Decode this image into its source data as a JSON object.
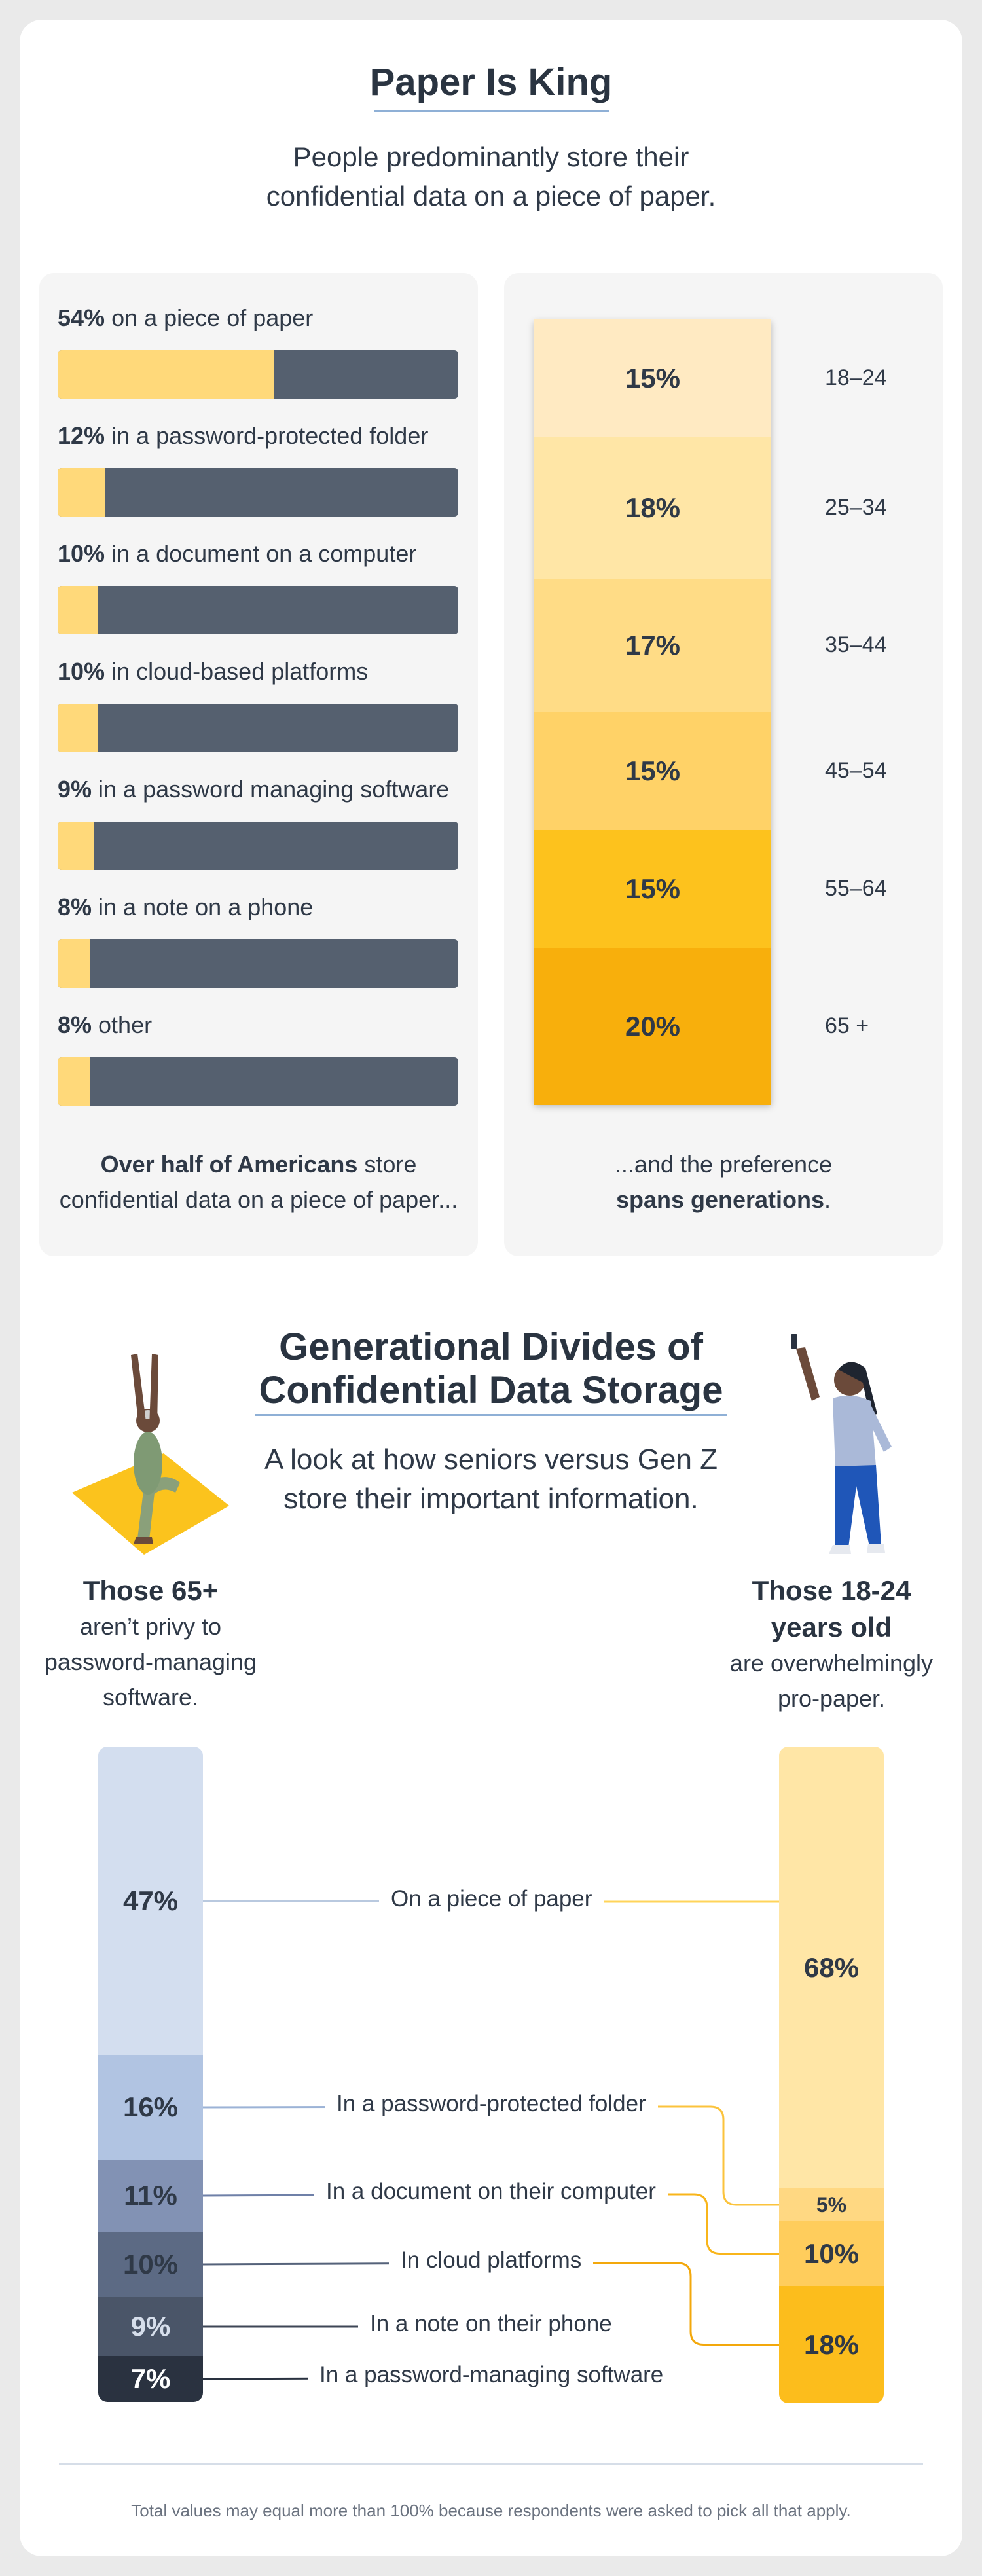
{
  "header": {
    "title": "Paper Is King",
    "subtitle_line1": "People predominantly store their",
    "subtitle_line2": "confidential data on a piece of paper."
  },
  "storage_panel": {
    "items": [
      {
        "pct": "54%",
        "label": " on a piece of paper",
        "value": 54
      },
      {
        "pct": "12%",
        "label": " in a password-protected folder",
        "value": 12
      },
      {
        "pct": "10%",
        "label": " in a document on a computer",
        "value": 10
      },
      {
        "pct": "10%",
        "label": " in cloud-based platforms",
        "value": 10
      },
      {
        "pct": "9%",
        "label": " in a password managing software",
        "value": 9
      },
      {
        "pct": "8%",
        "label": " in a note on a phone",
        "value": 8
      },
      {
        "pct": "8%",
        "label": " other",
        "value": 8
      }
    ],
    "caption_bold": "Over half of Americans",
    "caption_rest": " store",
    "caption_line2": "confidential data on a piece of paper..."
  },
  "generations_panel": {
    "segments": [
      {
        "pct": "15%",
        "age": "18–24",
        "value": 15,
        "color": "#ffeac2"
      },
      {
        "pct": "18%",
        "age": "25–34",
        "value": 18,
        "color": "#ffe6a6"
      },
      {
        "pct": "17%",
        "age": "35–44",
        "value": 17,
        "color": "#ffdc86"
      },
      {
        "pct": "15%",
        "age": "45–54",
        "value": 15,
        "color": "#ffd267"
      },
      {
        "pct": "15%",
        "age": "55–64",
        "value": 15,
        "color": "#fdc21d"
      },
      {
        "pct": "20%",
        "age": "65 +",
        "value": 20,
        "color": "#f8af0c"
      }
    ],
    "caption_line1": "...and the preference",
    "caption_bold": "spans generations",
    "caption_end": "."
  },
  "divides": {
    "title_line1": "Generational Divides of",
    "title_line2": "Confidential Data Storage",
    "subtitle_line1": "A look at how seniors versus Gen Z",
    "subtitle_line2": "store their important information.",
    "left_head": "Those 65+",
    "left_sub_line1": "aren’t privy to",
    "left_sub_line2": "password-managing",
    "left_sub_line3": "software.",
    "right_head_line1": "Those 18-24",
    "right_head_line2": "years old",
    "right_sub_line1": "are overwhelmingly",
    "right_sub_line2": "pro-paper."
  },
  "chart_data": [
    {
      "type": "bar",
      "title": "Paper Is King",
      "categories": [
        "on a piece of paper",
        "in a password-protected folder",
        "in a document on a computer",
        "in cloud-based platforms",
        "in a password managing software",
        "in a note on a phone",
        "other"
      ],
      "values": [
        54,
        12,
        10,
        10,
        9,
        8,
        8
      ],
      "ylim": [
        0,
        100
      ]
    },
    {
      "type": "bar",
      "categories": [
        "18–24",
        "25–34",
        "35–44",
        "45–54",
        "55–64",
        "65 +"
      ],
      "values": [
        15,
        18,
        17,
        15,
        15,
        20
      ]
    },
    {
      "type": "bar",
      "title": "Generational Divides of Confidential Data Storage",
      "categories": [
        "On a piece of paper",
        "In a password-protected folder",
        "In a document on their computer",
        "In cloud platforms",
        "In a note on their phone",
        "In a password-managing software"
      ],
      "series": [
        {
          "name": "Those 65+",
          "values": [
            47,
            16,
            11,
            10,
            9,
            7
          ]
        },
        {
          "name": "Those 18-24 years old",
          "values": [
            68,
            5,
            10,
            18,
            null,
            null
          ]
        }
      ]
    }
  ],
  "seniors_bar": [
    {
      "pct": "47%",
      "color": "#d3deef",
      "text_color": "#2f3947",
      "line": "#b9c9df"
    },
    {
      "pct": "16%",
      "color": "#b1c4e2",
      "text_color": "#2f3947",
      "line": "#9cb3d6"
    },
    {
      "pct": "11%",
      "color": "#8292b4",
      "text_color": "#2f3947",
      "line": "#6f80a8"
    },
    {
      "pct": "10%",
      "color": "#5c6a84",
      "text_color": "#2f3947",
      "line": "#55627a"
    },
    {
      "pct": "9%",
      "color": "#4a5568",
      "text_color": "#d6deeb",
      "line": "#3d4656"
    },
    {
      "pct": "7%",
      "color": "#2a3240",
      "text_color": "#ffffff",
      "line": "#2a3240"
    }
  ],
  "genz_bar": [
    {
      "pct": "68%",
      "color": "#ffe6a6",
      "line": "#ffd45a"
    },
    {
      "pct": "5%",
      "color": "#ffd882",
      "line": "#fbc33c"
    },
    {
      "pct": "10%",
      "color": "#ffcd5c",
      "line": "#f8b51b"
    },
    {
      "pct": "18%",
      "color": "#fcbd1c",
      "line": "#f3a80c"
    }
  ],
  "middle_labels": [
    "On a piece of paper",
    "In a password-protected folder",
    "In a document on their computer",
    "In cloud platforms",
    "In a note on their phone",
    "In a password-managing software"
  ],
  "footnote": "Total values may equal more than 100% because respondents were asked to pick all that apply."
}
